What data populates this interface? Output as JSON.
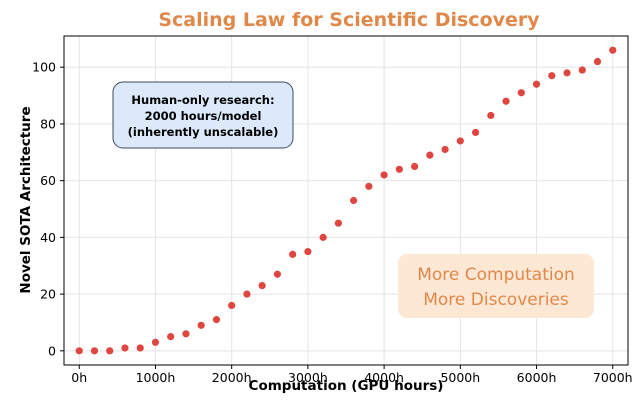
{
  "chart_data": {
    "type": "scatter",
    "title": "Scaling Law for Scientific Discovery",
    "xlabel": "Computation (GPU hours)",
    "ylabel": "Novel SOTA Architecture",
    "xlim": [
      -200,
      7200
    ],
    "ylim": [
      -5,
      111
    ],
    "x_ticks": [
      {
        "value": 0,
        "label": "0h"
      },
      {
        "value": 1000,
        "label": "1000h"
      },
      {
        "value": 2000,
        "label": "2000h"
      },
      {
        "value": 3000,
        "label": "3000h"
      },
      {
        "value": 4000,
        "label": "4000h"
      },
      {
        "value": 5000,
        "label": "5000h"
      },
      {
        "value": 6000,
        "label": "6000h"
      },
      {
        "value": 7000,
        "label": "7000h"
      }
    ],
    "y_ticks": [
      0,
      20,
      40,
      60,
      80,
      100
    ],
    "grid": true,
    "point_color": "#e04640",
    "title_color": "#e0884a",
    "points": [
      {
        "x": 0,
        "y": 0
      },
      {
        "x": 200,
        "y": 0
      },
      {
        "x": 400,
        "y": 0
      },
      {
        "x": 600,
        "y": 1
      },
      {
        "x": 800,
        "y": 1
      },
      {
        "x": 1000,
        "y": 3
      },
      {
        "x": 1200,
        "y": 5
      },
      {
        "x": 1400,
        "y": 6
      },
      {
        "x": 1600,
        "y": 9
      },
      {
        "x": 1800,
        "y": 11
      },
      {
        "x": 2000,
        "y": 16
      },
      {
        "x": 2200,
        "y": 20
      },
      {
        "x": 2400,
        "y": 23
      },
      {
        "x": 2600,
        "y": 27
      },
      {
        "x": 2800,
        "y": 34
      },
      {
        "x": 3000,
        "y": 35
      },
      {
        "x": 3200,
        "y": 40
      },
      {
        "x": 3400,
        "y": 45
      },
      {
        "x": 3600,
        "y": 53
      },
      {
        "x": 3800,
        "y": 58
      },
      {
        "x": 4000,
        "y": 62
      },
      {
        "x": 4200,
        "y": 64
      },
      {
        "x": 4400,
        "y": 65
      },
      {
        "x": 4600,
        "y": 69
      },
      {
        "x": 4800,
        "y": 71
      },
      {
        "x": 5000,
        "y": 74
      },
      {
        "x": 5200,
        "y": 77
      },
      {
        "x": 5400,
        "y": 83
      },
      {
        "x": 5600,
        "y": 88
      },
      {
        "x": 5800,
        "y": 91
      },
      {
        "x": 6000,
        "y": 94
      },
      {
        "x": 6200,
        "y": 97
      },
      {
        "x": 6400,
        "y": 98
      },
      {
        "x": 6600,
        "y": 99
      },
      {
        "x": 6800,
        "y": 102
      },
      {
        "x": 7000,
        "y": 106
      }
    ],
    "annotations": [
      {
        "id": "human-only",
        "lines": [
          "Human-only research:",
          "2000 hours/model",
          "(inherently unscalable)"
        ],
        "fill": "#dbe9fb",
        "stroke": "#3c4a5a"
      },
      {
        "id": "more-computation",
        "lines": [
          "More Computation",
          "More Discoveries"
        ],
        "fill": "#fde8d6",
        "text_color": "#e0884a"
      }
    ]
  }
}
